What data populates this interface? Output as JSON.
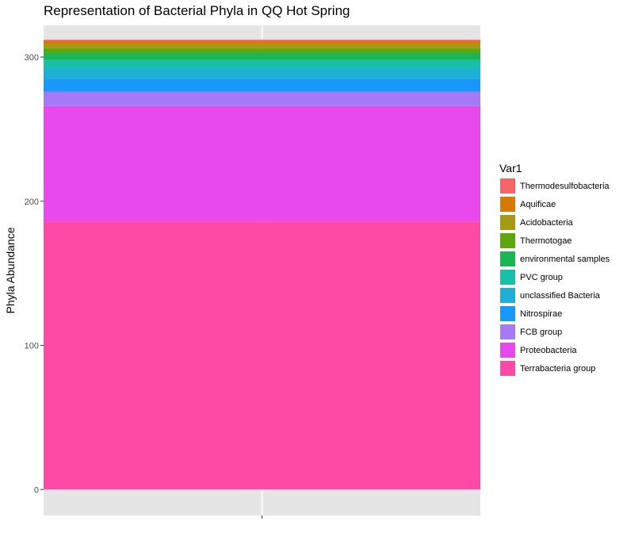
{
  "chart_data": {
    "type": "bar",
    "stacked": true,
    "title": "Representation of Bacterial Phyla in QQ Hot Spring",
    "xlabel": "",
    "ylabel": "Phyla Abundance",
    "categories": [
      ""
    ],
    "ylim": [
      -18,
      322
    ],
    "yticks": [
      0,
      100,
      200,
      300
    ],
    "grid": true,
    "legend": {
      "title": "Var1",
      "position": "right"
    },
    "series": [
      {
        "name": "Terrabacteria group",
        "values": [
          186
        ],
        "color": "#FF4AA5"
      },
      {
        "name": "Proteobacteria",
        "values": [
          80
        ],
        "color": "#E849EC"
      },
      {
        "name": "FCB group",
        "values": [
          10
        ],
        "color": "#A57AF8"
      },
      {
        "name": "Nitrospirae",
        "values": [
          9
        ],
        "color": "#1A97FA"
      },
      {
        "name": "unclassified Bacteria",
        "values": [
          7
        ],
        "color": "#1DAFD6"
      },
      {
        "name": "PVC group",
        "values": [
          6
        ],
        "color": "#1ABFAA"
      },
      {
        "name": "environmental samples",
        "values": [
          5
        ],
        "color": "#1BB555"
      },
      {
        "name": "Thermotogae",
        "values": [
          3
        ],
        "color": "#5CA70B"
      },
      {
        "name": "Acidobacteria",
        "values": [
          3
        ],
        "color": "#A49A11"
      },
      {
        "name": "Aquificae",
        "values": [
          2
        ],
        "color": "#D47A05"
      },
      {
        "name": "Thermodesulfobacteria",
        "values": [
          1
        ],
        "color": "#F46468"
      }
    ]
  }
}
